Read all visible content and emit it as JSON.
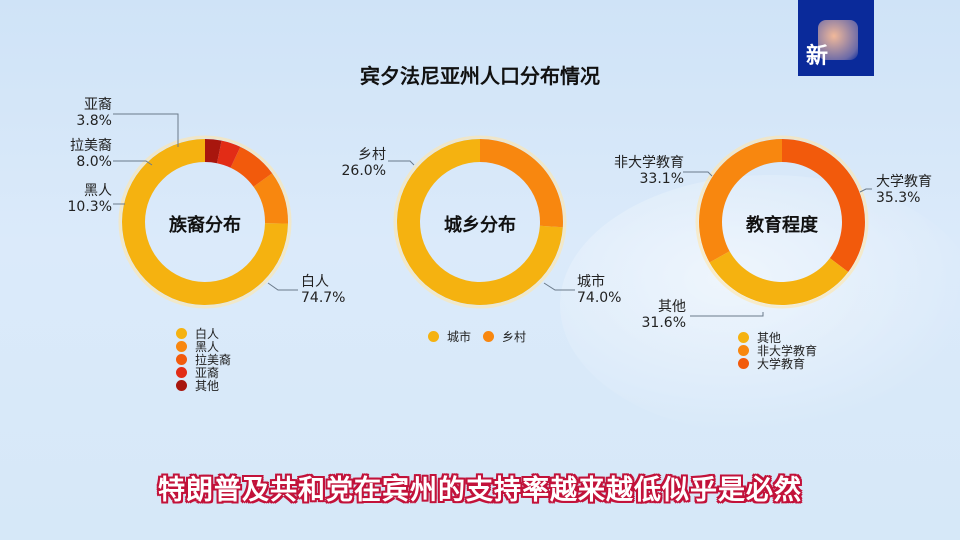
{
  "title": "宾夕法尼亚州人口分布情况",
  "logo": {
    "text": "新"
  },
  "subtitle": "特朗普及共和党在宾州的支持率越来越低似乎是必然",
  "charts": {
    "ethnicity": {
      "center": "族裔分布",
      "labels": {
        "asian": {
          "name": "亚裔",
          "pct": "3.8%"
        },
        "latino": {
          "name": "拉美裔",
          "pct": "8.0%"
        },
        "black": {
          "name": "黑人",
          "pct": "10.3%"
        },
        "white": {
          "name": "白人",
          "pct": "74.7%"
        }
      },
      "legend": [
        "白人",
        "黑人",
        "拉美裔",
        "亚裔",
        "其他"
      ]
    },
    "urban": {
      "center": "城乡分布",
      "labels": {
        "rural": {
          "name": "乡村",
          "pct": "26.0%"
        },
        "city": {
          "name": "城市",
          "pct": "74.0%"
        }
      },
      "legend": [
        "城市",
        "乡村"
      ]
    },
    "education": {
      "center": "教育程度",
      "labels": {
        "noncollege": {
          "name": "非大学教育",
          "pct": "33.1%"
        },
        "college": {
          "name": "大学教育",
          "pct": "35.3%"
        },
        "other": {
          "name": "其他",
          "pct": "31.6%"
        }
      },
      "legend": [
        "其他",
        "非大学教育",
        "大学教育"
      ]
    }
  },
  "colors": {
    "yellow": "#f5b210",
    "orange": "#f8870f",
    "red_orange": "#f25a0c",
    "red": "#e22c16",
    "dark_red": "#a8160e",
    "subtitle_stroke": "#c2123a",
    "logo_bg": "#0a2a9a"
  },
  "chart_data": [
    {
      "type": "pie",
      "title": "族裔分布",
      "categories": [
        "白人",
        "黑人",
        "拉美裔",
        "亚裔",
        "其他"
      ],
      "values": [
        74.7,
        10.3,
        8.0,
        3.8,
        3.2
      ],
      "legend_position": "bottom",
      "donut": true
    },
    {
      "type": "pie",
      "title": "城乡分布",
      "categories": [
        "城市",
        "乡村"
      ],
      "values": [
        74.0,
        26.0
      ],
      "legend_position": "bottom",
      "donut": true
    },
    {
      "type": "pie",
      "title": "教育程度",
      "categories": [
        "其他",
        "非大学教育",
        "大学教育"
      ],
      "values": [
        31.6,
        33.1,
        35.3
      ],
      "legend_position": "bottom",
      "donut": true
    }
  ]
}
